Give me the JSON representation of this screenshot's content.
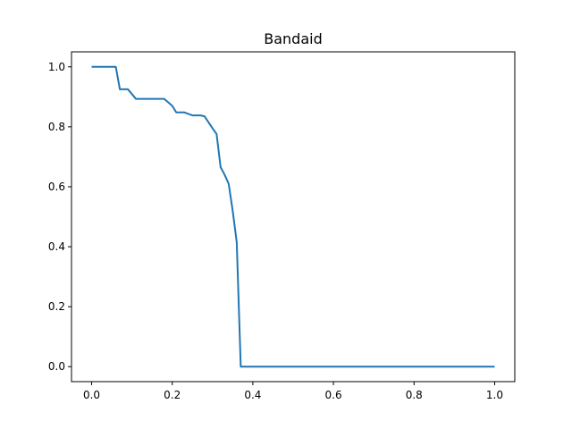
{
  "chart_data": {
    "type": "line",
    "title": "Bandaid",
    "xlabel": "",
    "ylabel": "",
    "xlim": [
      -0.05,
      1.05
    ],
    "ylim": [
      -0.05,
      1.05
    ],
    "x_ticks": [
      "0.0",
      "0.2",
      "0.4",
      "0.6",
      "0.8",
      "1.0"
    ],
    "y_ticks": [
      "0.0",
      "0.2",
      "0.4",
      "0.6",
      "0.8",
      "1.0"
    ],
    "grid": false,
    "series_color": "#1f77b4",
    "series": [
      {
        "x": [
          0.0,
          0.02,
          0.04,
          0.06,
          0.07,
          0.09,
          0.11,
          0.13,
          0.15,
          0.18,
          0.2,
          0.21,
          0.23,
          0.25,
          0.27,
          0.28,
          0.3,
          0.31,
          0.32,
          0.33,
          0.34,
          0.35,
          0.36,
          0.37,
          0.38,
          0.5,
          0.6,
          0.7,
          0.8,
          0.9,
          1.0
        ],
        "y": [
          1.0,
          1.0,
          1.0,
          1.0,
          0.925,
          0.925,
          0.893,
          0.893,
          0.893,
          0.893,
          0.87,
          0.848,
          0.848,
          0.838,
          0.838,
          0.835,
          0.795,
          0.776,
          0.665,
          0.64,
          0.61,
          0.52,
          0.415,
          0.0,
          0.0,
          0.0,
          0.0,
          0.0,
          0.0,
          0.0,
          0.0
        ]
      }
    ]
  }
}
